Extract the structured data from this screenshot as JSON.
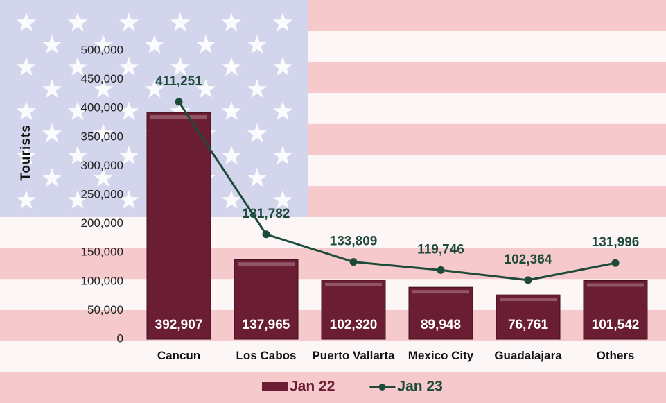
{
  "chart_data": {
    "type": "combo",
    "y_label": "Tourists",
    "categories": [
      "Cancun",
      "Los Cabos",
      "Puerto Vallarta",
      "Mexico City",
      "Guadalajara",
      "Others"
    ],
    "series": [
      {
        "name": "Jan 22",
        "type": "bar",
        "color": "#6b1d33",
        "values": [
          392907,
          137965,
          102320,
          89948,
          76761,
          101542
        ],
        "value_labels": [
          "392,907",
          "137,965",
          "102,320",
          "89,948",
          "76,761",
          "101,542"
        ]
      },
      {
        "name": "Jan 23",
        "type": "line",
        "color": "#1e4a3a",
        "values": [
          411251,
          181782,
          133809,
          119746,
          102364,
          131996
        ],
        "value_labels": [
          "411,251",
          "181,782",
          "133,809",
          "119,746",
          "102,364",
          "131,996"
        ]
      }
    ],
    "ylim": [
      0,
      500000
    ],
    "yticks": [
      0,
      {
        "value": 50000,
        "label": "50,000"
      },
      {
        "value": 100000,
        "label": "100,000"
      },
      {
        "value": 150000,
        "label": "150,000"
      },
      {
        "value": 200000,
        "label": "200,000"
      },
      {
        "value": 250000,
        "label": "250,000"
      },
      {
        "value": 300000,
        "label": "300,000"
      },
      {
        "value": 350000,
        "label": "350,000"
      },
      {
        "value": 400000,
        "label": "400,000"
      },
      {
        "value": 450000,
        "label": "450,000"
      },
      {
        "value": 500000,
        "label": "500,000"
      }
    ]
  }
}
